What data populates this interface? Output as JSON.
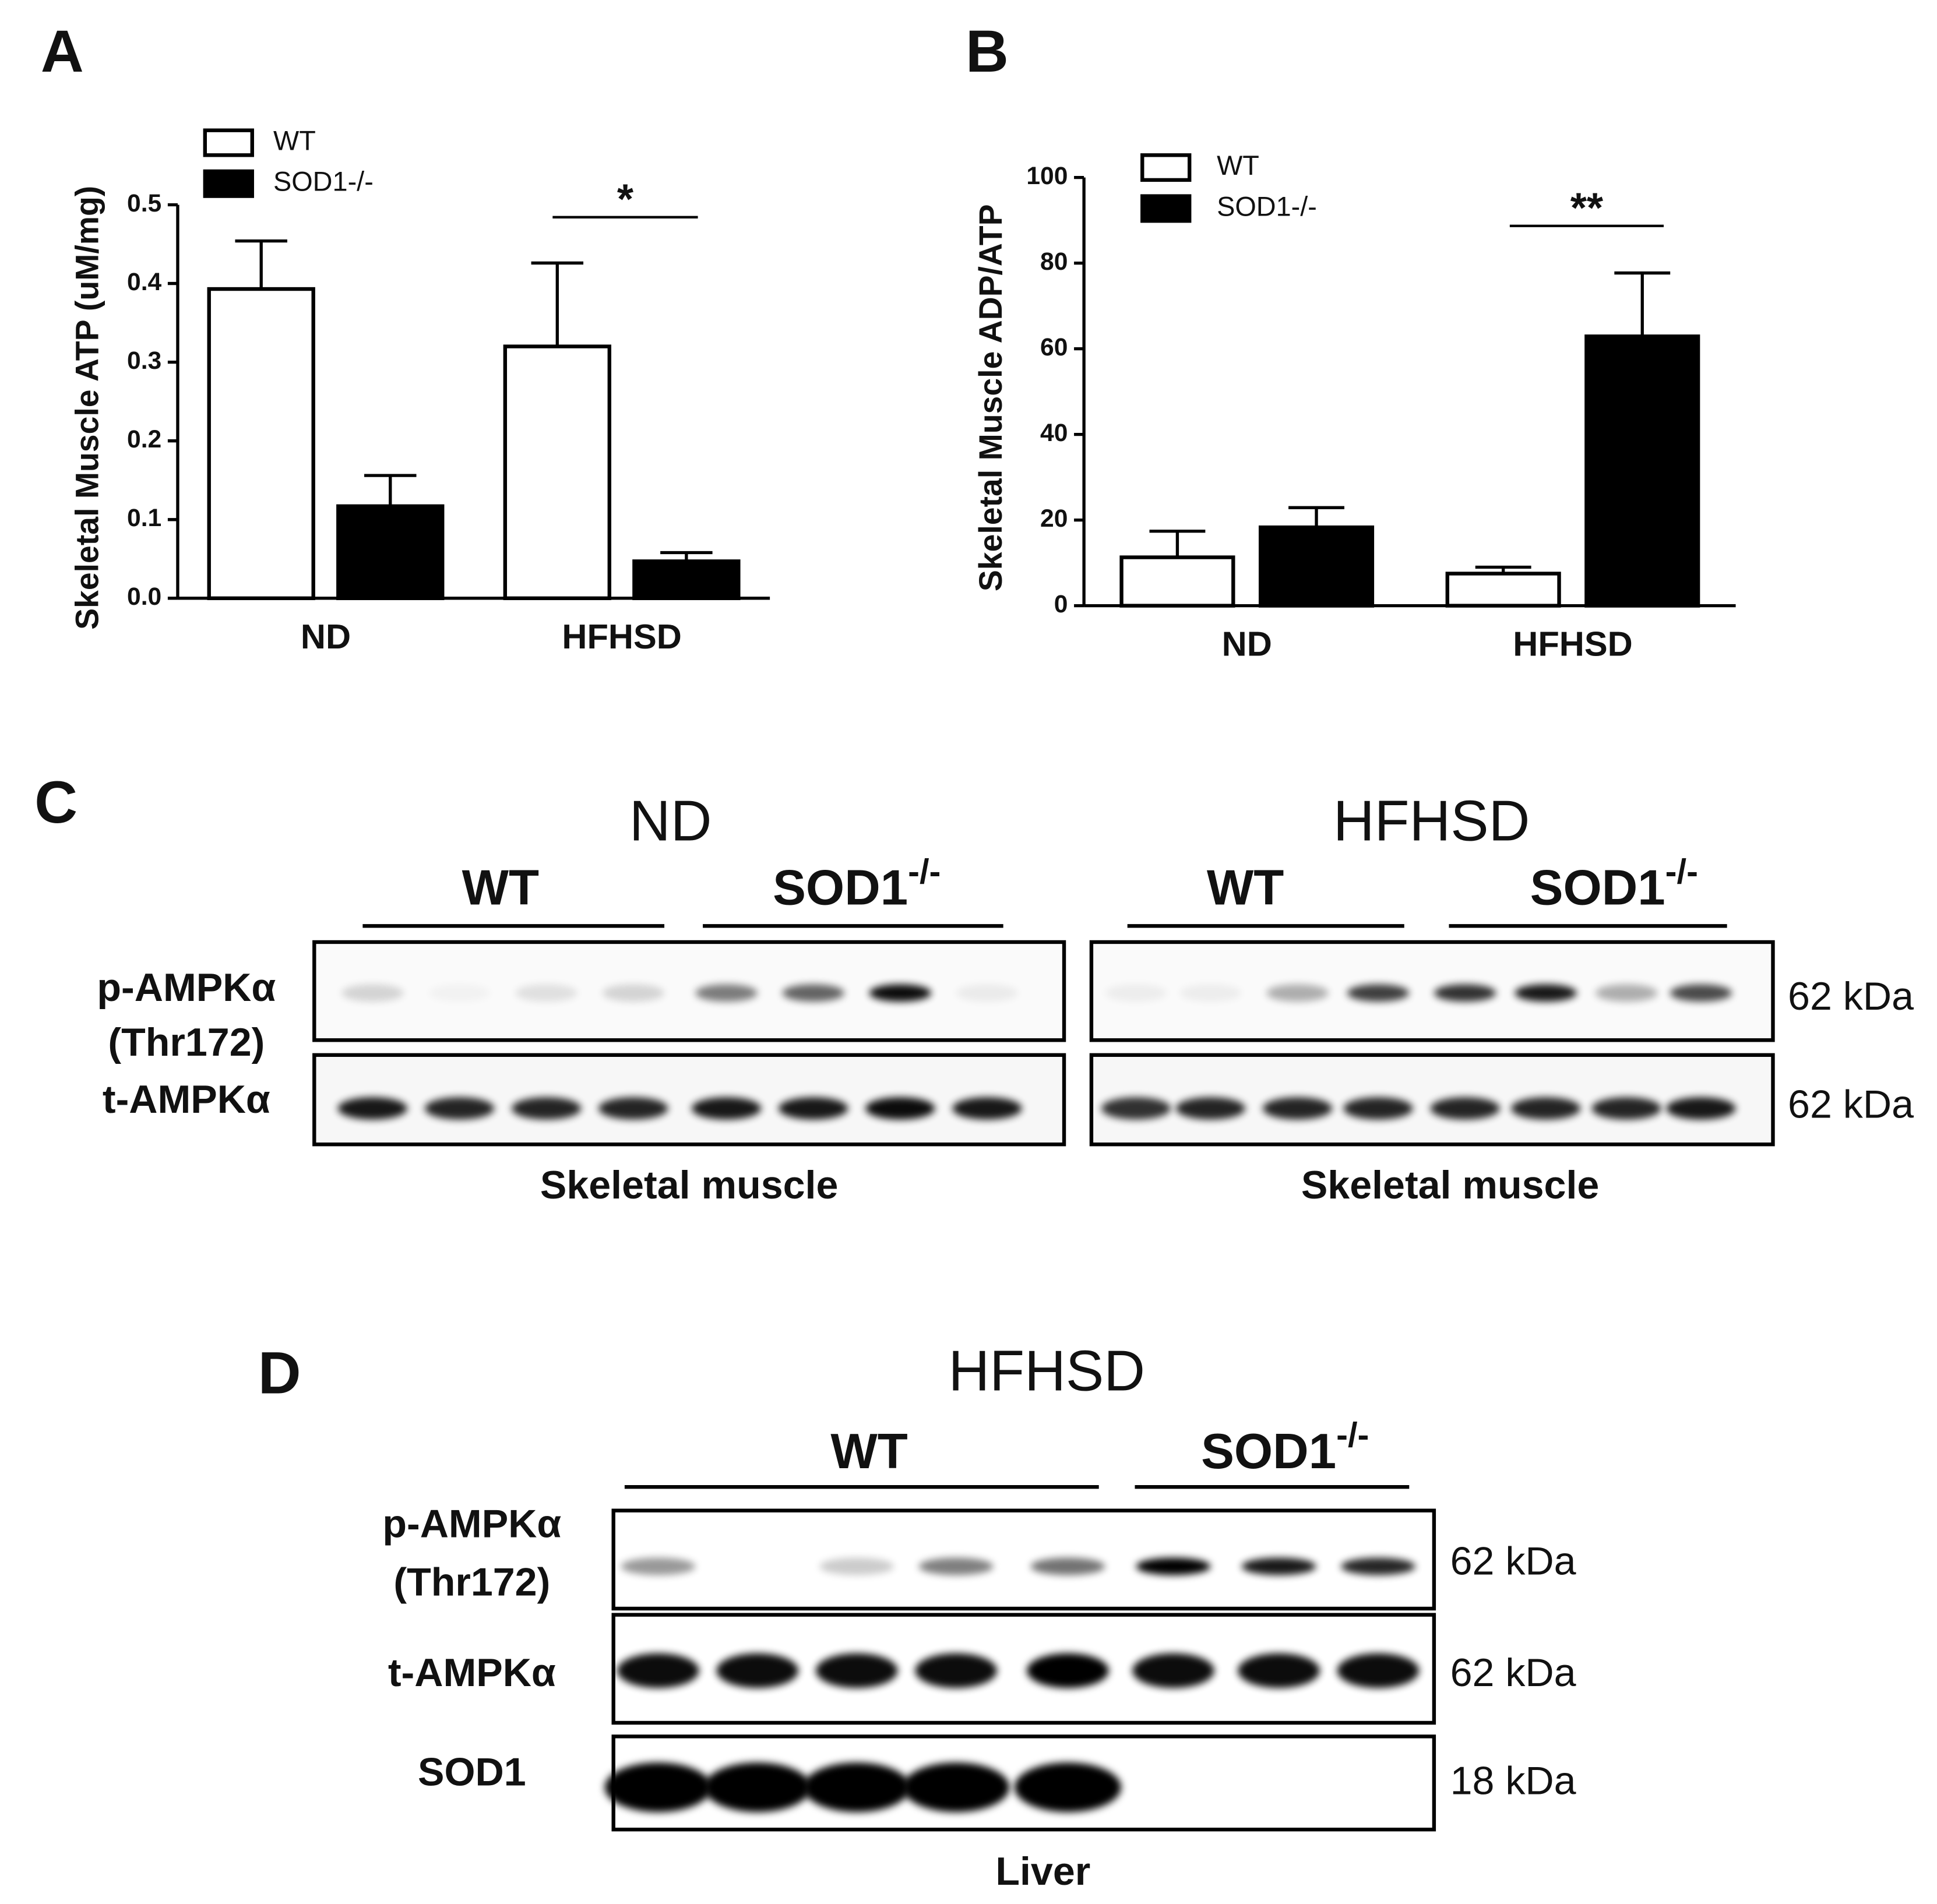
{
  "chart_data": [
    {
      "type": "bar",
      "panel_label": "A",
      "ylabel": "Skeletal Muscle ATP (uM/mg)",
      "categories": [
        "ND",
        "HFHSD"
      ],
      "series": [
        {
          "name": "WT",
          "color": "#ffffff",
          "values": [
            0.393,
            0.32
          ],
          "errors": [
            0.061,
            0.106
          ]
        },
        {
          "name": "SOD1-/-",
          "color": "#000000",
          "values": [
            0.117,
            0.047
          ],
          "errors": [
            0.039,
            0.011
          ]
        }
      ],
      "ylim": [
        0,
        0.5
      ],
      "yticks": [
        {
          "value": 0,
          "label": "0.0"
        },
        0.1,
        0.2,
        0.3,
        0.4,
        0.5
      ],
      "annotation": "*"
    },
    {
      "type": "bar",
      "panel_label": "B",
      "ylabel": "Skeletal Muscle ADP/ATP",
      "categories": [
        "ND",
        "HFHSD"
      ],
      "series": [
        {
          "name": "WT",
          "color": "#ffffff",
          "values": [
            11.3,
            7.5
          ],
          "errors": [
            6.1,
            1.5
          ]
        },
        {
          "name": "SOD1-/-",
          "color": "#000000",
          "values": [
            18.3,
            62.9
          ],
          "errors": [
            4.6,
            14.8
          ]
        }
      ],
      "ylim": [
        0,
        100
      ],
      "yticks": [
        0,
        20,
        40,
        60,
        80,
        100
      ],
      "annotation": "**"
    }
  ],
  "panel_c": {
    "label": "C",
    "row_labels": [
      [
        "p-AMPKα",
        "(Thr172)"
      ],
      [
        "t-AMPKα"
      ]
    ],
    "sizes": [
      "62 kDa",
      "62 kDa"
    ],
    "blots": [
      {
        "title": "ND",
        "groups": [
          {
            "name": "WT"
          },
          {
            "name": "SOD1",
            "sup": "-/-"
          }
        ],
        "tissue": "Skeletal muscle"
      },
      {
        "title": "HFHSD",
        "groups": [
          {
            "name": "WT"
          },
          {
            "name": "SOD1",
            "sup": "-/-"
          }
        ],
        "tissue": "Skeletal muscle"
      }
    ]
  },
  "panel_d": {
    "label": "D",
    "title": "HFHSD",
    "groups": [
      {
        "name": "WT"
      },
      {
        "name": "SOD1",
        "sup": "-/-"
      }
    ],
    "row_labels": [
      [
        "p-AMPKα",
        "(Thr172)"
      ],
      [
        "t-AMPKα"
      ],
      [
        "SOD1"
      ]
    ],
    "sizes": [
      "62 kDa",
      "62 kDa",
      "18 kDa"
    ],
    "tissue": "Liver"
  }
}
